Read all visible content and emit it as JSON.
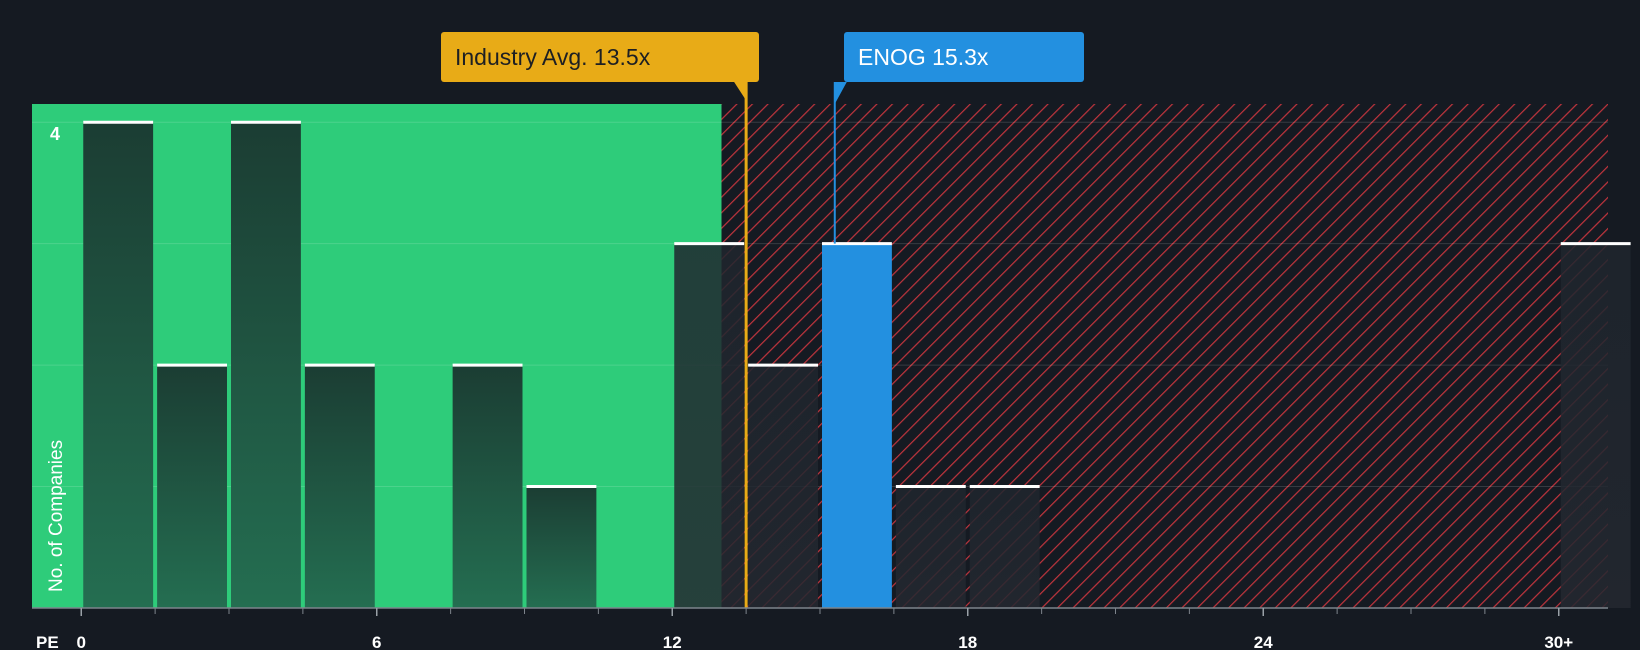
{
  "chart_data": {
    "type": "bar",
    "title": "",
    "xlabel": "PE",
    "ylabel": "No. of Companies",
    "x_ticks": [
      "0",
      "6",
      "12",
      "18",
      "24",
      "30+"
    ],
    "x_tick_values": [
      0,
      6,
      12,
      18,
      24,
      30
    ],
    "xlim": [
      -1,
      31
    ],
    "ylim": [
      0,
      4.15
    ],
    "y_tick_labels": [
      "4"
    ],
    "y_tick_values": [
      4
    ],
    "bin_width": 1.5,
    "bins": [
      {
        "start": 0,
        "value": 4
      },
      {
        "start": 1.5,
        "value": 2
      },
      {
        "start": 3,
        "value": 4
      },
      {
        "start": 4.5,
        "value": 2
      },
      {
        "start": 6,
        "value": 0
      },
      {
        "start": 7.5,
        "value": 2
      },
      {
        "start": 9,
        "value": 1
      },
      {
        "start": 10.5,
        "value": 0
      },
      {
        "start": 12,
        "value": 3
      },
      {
        "start": 13.5,
        "value": 2
      },
      {
        "start": 15,
        "value": 3,
        "highlight": true
      },
      {
        "start": 16.5,
        "value": 1
      },
      {
        "start": 18,
        "value": 1
      },
      {
        "start": 30,
        "value": 3
      }
    ],
    "industry_avg": {
      "label": "Industry Avg. 13.5x",
      "value": 13.5
    },
    "company": {
      "label": "ENOG 15.3x",
      "value": 15.3
    },
    "fair_region_end": 13
  },
  "colors": {
    "background": "#151a22",
    "fair_zone": "#2ecc7a",
    "bar_dark": "#1d4438",
    "bar_highlight": "#2390e0",
    "hatch": "#c0343d",
    "industry": "#e8ab17",
    "bar_cap": "#ffffff"
  }
}
